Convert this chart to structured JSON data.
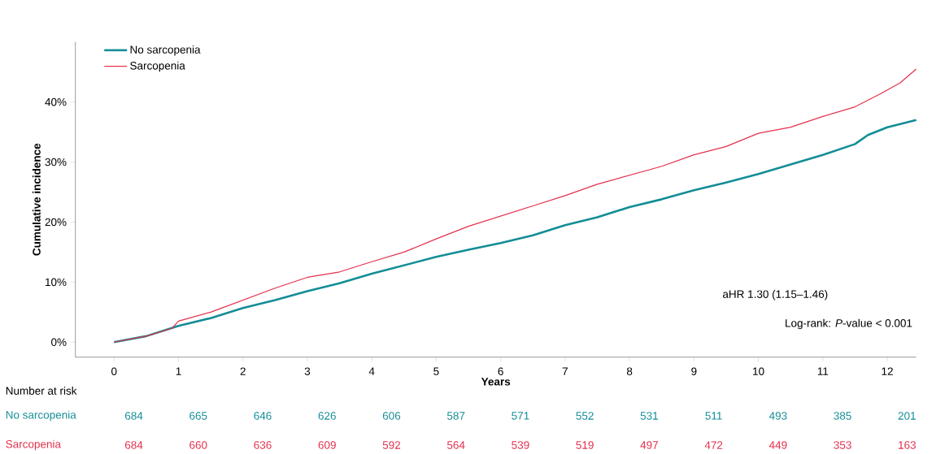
{
  "chart_data": {
    "type": "line",
    "xlabel": "Years",
    "ylabel": "Cumulative incidence",
    "xlim": [
      -0.6,
      12.45
    ],
    "ylim": [
      -2.5,
      50
    ],
    "xticks": [
      0,
      1,
      2,
      3,
      4,
      5,
      6,
      7,
      8,
      9,
      10,
      11,
      12
    ],
    "yticks": [
      {
        "value": 0,
        "label": "0%"
      },
      {
        "value": 10,
        "label": "10%"
      },
      {
        "value": 20,
        "label": "20%"
      },
      {
        "value": 30,
        "label": "30%"
      },
      {
        "value": 40,
        "label": "40%"
      }
    ],
    "grid": false,
    "legend": "top left",
    "marker": "none",
    "line_style": "solid",
    "series": [
      {
        "name": "No sarcopenia",
        "color": "#138d96",
        "x": [
          0,
          0.5,
          1,
          1.5,
          2,
          2.5,
          3,
          3.5,
          4,
          4.5,
          5,
          5.5,
          6,
          6.5,
          7,
          7.5,
          8,
          8.5,
          9,
          9.5,
          10,
          10.5,
          11,
          11.5,
          11.7,
          12,
          12.45
        ],
        "values": [
          0,
          1.0,
          2.7,
          4.0,
          5.7,
          7.0,
          8.5,
          9.8,
          11.4,
          12.8,
          14.2,
          15.4,
          16.5,
          17.8,
          19.5,
          20.8,
          22.5,
          23.8,
          25.3,
          26.6,
          28.0,
          29.6,
          31.2,
          33.0,
          34.5,
          35.8,
          37.0
        ]
      },
      {
        "name": "Sarcopenia",
        "color": "#e4304c",
        "x": [
          0,
          0.5,
          0.9,
          1,
          1.5,
          2,
          2.5,
          3,
          3.5,
          4,
          4.5,
          5,
          5.5,
          6,
          6.5,
          7,
          7.5,
          8,
          8.5,
          9,
          9.5,
          10,
          10.5,
          11,
          11.5,
          11.9,
          12.2,
          12.45
        ],
        "values": [
          0,
          1.0,
          2.3,
          3.5,
          5.0,
          7.0,
          9.0,
          10.8,
          11.7,
          13.4,
          15.0,
          17.2,
          19.3,
          21.0,
          22.7,
          24.4,
          26.3,
          27.8,
          29.3,
          31.2,
          32.6,
          34.8,
          35.8,
          37.6,
          39.2,
          41.4,
          43.2,
          45.5
        ]
      }
    ],
    "annotations": [
      "aHR 1.30 (1.15–1.46)",
      "Log-rank: *P*-value < 0.001",
      "Number at risk",
      "No sarcopenia",
      "684",
      "665",
      "646",
      "626",
      "606",
      "587",
      "571",
      "552",
      "531",
      "511",
      "493",
      "385",
      "201",
      "Sarcopenia",
      "684",
      "660",
      "636",
      "609",
      "592",
      "564",
      "539",
      "519",
      "497",
      "472",
      "449",
      "353",
      "163"
    ]
  }
}
